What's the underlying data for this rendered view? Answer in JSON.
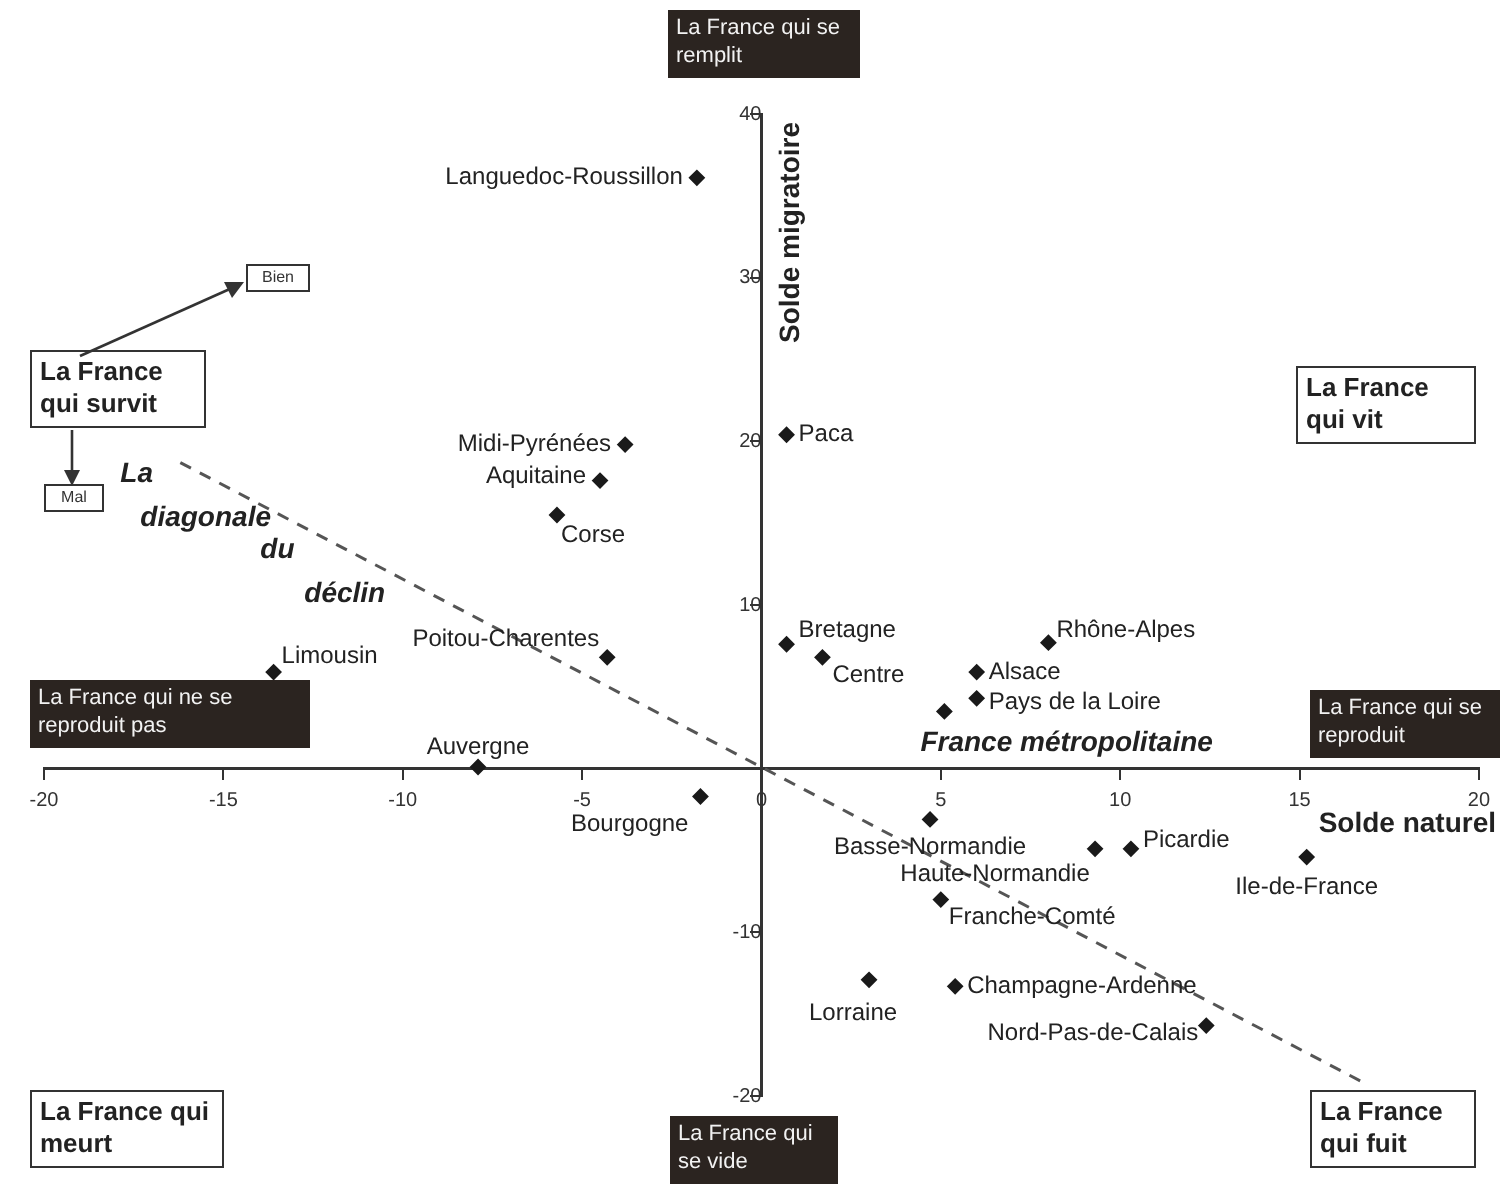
{
  "chart_data": {
    "type": "scatter",
    "xlabel": "Solde naturel",
    "ylabel": "Solde migratoire",
    "xlim": [
      -20,
      20
    ],
    "xticks": [
      -20,
      -15,
      -10,
      -5,
      0,
      5,
      10,
      15,
      20
    ],
    "ylim": [
      -20,
      40
    ],
    "yticks": [
      -20,
      -10,
      {
        "value": 0,
        "label": null
      },
      10,
      20,
      30,
      40
    ],
    "grid": false,
    "marker": "diamond",
    "series": [
      {
        "name": "Languedoc-Roussillon",
        "color": "#1a1a1a",
        "x": [
          -1.8
        ],
        "values": [
          36.1
        ]
      },
      {
        "name": "Paca",
        "color": "#1a1a1a",
        "x": [
          0.7
        ],
        "values": [
          20.4
        ]
      },
      {
        "name": "Midi-Pyrénées",
        "color": "#1a1a1a",
        "x": [
          -3.8
        ],
        "values": [
          19.8
        ]
      },
      {
        "name": "Aquitaine",
        "color": "#1a1a1a",
        "x": [
          -4.5
        ],
        "values": [
          17.6
        ]
      },
      {
        "name": "Corse",
        "color": "#1a1a1a",
        "x": [
          -5.7
        ],
        "values": [
          15.5
        ]
      },
      {
        "name": "Poitou-Charentes",
        "color": "#1a1a1a",
        "x": [
          -4.3
        ],
        "values": [
          6.8
        ]
      },
      {
        "name": "Limousin",
        "color": "#1a1a1a",
        "x": [
          -13.6
        ],
        "values": [
          5.9
        ]
      },
      {
        "name": "Auvergne",
        "color": "#1a1a1a",
        "x": [
          -7.9
        ],
        "values": [
          0.1
        ]
      },
      {
        "name": "Bourgogne",
        "color": "#1a1a1a",
        "x": [
          -1.7
        ],
        "values": [
          -1.7
        ]
      },
      {
        "name": "Bretagne",
        "color": "#1a1a1a",
        "x": [
          0.7
        ],
        "values": [
          7.6
        ]
      },
      {
        "name": "Centre",
        "color": "#1a1a1a",
        "x": [
          1.7
        ],
        "values": [
          6.8
        ]
      },
      {
        "name": "Rhône-Alpes",
        "color": "#1a1a1a",
        "x": [
          8.0
        ],
        "values": [
          7.7
        ]
      },
      {
        "name": "Alsace",
        "color": "#1a1a1a",
        "x": [
          6.0
        ],
        "values": [
          5.9
        ]
      },
      {
        "name": "Pays de la Loire",
        "color": "#1a1a1a",
        "x": [
          6.0
        ],
        "values": [
          4.3
        ]
      },
      {
        "name": "France métropolitaine",
        "color": "#1a1a1a",
        "x": [
          5.1
        ],
        "values": [
          3.5
        ]
      },
      {
        "name": "Basse-Normandie",
        "color": "#1a1a1a",
        "x": [
          4.7
        ],
        "values": [
          -3.1
        ]
      },
      {
        "name": "Haute-Normandie",
        "color": "#1a1a1a",
        "x": [
          9.3
        ],
        "values": [
          -4.9
        ]
      },
      {
        "name": "Picardie",
        "color": "#1a1a1a",
        "x": [
          10.3
        ],
        "values": [
          -4.9
        ]
      },
      {
        "name": "Ile-de-France",
        "color": "#1a1a1a",
        "x": [
          15.2
        ],
        "values": [
          -5.4
        ]
      },
      {
        "name": "Franche-Comté",
        "color": "#1a1a1a",
        "x": [
          5.0
        ],
        "values": [
          -8.0
        ]
      },
      {
        "name": "Lorraine",
        "color": "#1a1a1a",
        "x": [
          3.0
        ],
        "values": [
          -12.9
        ]
      },
      {
        "name": "Champagne-Ardenne",
        "color": "#1a1a1a",
        "x": [
          5.4
        ],
        "values": [
          -13.3
        ]
      },
      {
        "name": "Nord-Pas-de-Calais",
        "color": "#1a1a1a",
        "x": [
          12.4
        ],
        "values": [
          -15.7
        ]
      },
      {
        "name": "La diagonale du déclin",
        "type": "line",
        "color": "#555555",
        "line_style": "dashed",
        "marker": "none",
        "x": [
          -16.2,
          16.8
        ],
        "values": [
          18.7,
          -19.2
        ]
      }
    ],
    "annotations": [
      "La France qui se remplit",
      "La France qui se vide",
      "La France qui ne se reproduit pas",
      "La France qui se reproduit",
      "La France qui survit",
      "Bien",
      "Mal",
      "La France qui vit",
      "La France qui meurt",
      "La France qui fuit"
    ]
  }
}
